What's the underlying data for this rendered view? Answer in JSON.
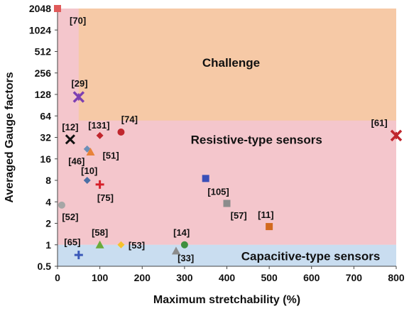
{
  "chart_data": {
    "type": "scatter",
    "xlabel": "Maximum stretchability (%)",
    "ylabel": "Averaged Gauge factors",
    "xlim": [
      0,
      800
    ],
    "ylim": [
      0.5,
      2048
    ],
    "y_scale": "log2",
    "x_ticks": [
      "0",
      "100",
      "200",
      "300",
      "400",
      "500",
      "600",
      "700",
      "800"
    ],
    "y_ticks": [
      "0.5",
      "1",
      "2",
      "4",
      "8",
      "16",
      "32",
      "64",
      "128",
      "256",
      "512",
      "1024",
      "2048"
    ],
    "x_tick_values": [
      0,
      100,
      200,
      300,
      400,
      500,
      600,
      700,
      800
    ],
    "y_tick_values": [
      0.5,
      1,
      2,
      4,
      8,
      16,
      32,
      64,
      128,
      256,
      512,
      1024,
      2048
    ],
    "grid": false,
    "regions": [
      {
        "label": "",
        "color": "#f4c6cc",
        "x": [
          0,
          800
        ],
        "y": [
          1,
          2048
        ]
      },
      {
        "label": "Challenge",
        "color": "#f6c9a6",
        "x": [
          50,
          800
        ],
        "y": [
          55,
          2048
        ],
        "label_at": [
          410,
          360
        ]
      },
      {
        "label": "Resistive-type sensors",
        "color": "#f4c6cc",
        "x": [
          0,
          800
        ],
        "y": [
          1,
          55
        ],
        "label_at": [
          470,
          30
        ]
      },
      {
        "label": "Capacitive-type sensors",
        "color": "#c9ddf0",
        "x": [
          0,
          800
        ],
        "y": [
          0.5,
          1
        ],
        "label_at": [
          598,
          0.7
        ]
      }
    ],
    "points": [
      {
        "ref": "[70]",
        "x": 0,
        "y": 2048,
        "marker": "square",
        "color": "#e05a5a",
        "label_at": [
          48,
          1400
        ]
      },
      {
        "ref": "[29]",
        "x": 50,
        "y": 118,
        "marker": "x-star",
        "color": "#7d3fb2",
        "label_at": [
          52,
          185
        ]
      },
      {
        "ref": "[12]",
        "x": 30,
        "y": 30,
        "marker": "x",
        "color": "#111111",
        "label_at": [
          30,
          45
        ]
      },
      {
        "ref": "[131]",
        "x": 100,
        "y": 34,
        "marker": "diamond",
        "color": "#c0262d",
        "label_at": [
          98,
          48
        ]
      },
      {
        "ref": "[74]",
        "x": 150,
        "y": 38,
        "marker": "circle",
        "color": "#c0262d",
        "label_at": [
          170,
          58
        ]
      },
      {
        "ref": "[46]",
        "x": 70,
        "y": 22,
        "marker": "diamond",
        "color": "#6c8fb8",
        "label_at": [
          45,
          15
        ]
      },
      {
        "ref": "[51]",
        "x": 78,
        "y": 20,
        "marker": "triangle",
        "color": "#e8833a",
        "label_at": [
          126,
          18
        ]
      },
      {
        "ref": "[10]",
        "x": 70,
        "y": 8,
        "marker": "diamond",
        "color": "#4a6fa5",
        "label_at": [
          75,
          11
        ]
      },
      {
        "ref": "[75]",
        "x": 100,
        "y": 7,
        "marker": "plus",
        "color": "#d6202a",
        "label_at": [
          113,
          4.6
        ]
      },
      {
        "ref": "[52]",
        "x": 10,
        "y": 3.6,
        "marker": "circle",
        "color": "#a6a6a6",
        "label_at": [
          30,
          2.5
        ]
      },
      {
        "ref": "[105]",
        "x": 350,
        "y": 8.5,
        "marker": "square",
        "color": "#3a4fb8",
        "label_at": [
          380,
          5.6
        ]
      },
      {
        "ref": "[57]",
        "x": 400,
        "y": 3.8,
        "marker": "square",
        "color": "#8c8c8c",
        "label_at": [
          428,
          2.6
        ]
      },
      {
        "ref": "[11]",
        "x": 500,
        "y": 1.8,
        "marker": "square",
        "color": "#d2691e",
        "label_at": [
          492,
          2.65
        ]
      },
      {
        "ref": "[61]",
        "x": 800,
        "y": 34,
        "marker": "x-star",
        "color": "#c0262d",
        "label_at": [
          760,
          52
        ]
      },
      {
        "ref": "[65]",
        "x": 50,
        "y": 0.72,
        "marker": "plus",
        "color": "#3a58b8",
        "label_at": [
          35,
          1.1
        ]
      },
      {
        "ref": "[58]",
        "x": 100,
        "y": 1,
        "marker": "triangle",
        "color": "#6aaa3a",
        "label_at": [
          100,
          1.5
        ]
      },
      {
        "ref": "[53]",
        "x": 150,
        "y": 1,
        "marker": "diamond",
        "color": "#f5c22b",
        "label_at": [
          187,
          1.0
        ]
      },
      {
        "ref": "[14]",
        "x": 300,
        "y": 1,
        "marker": "circle",
        "color": "#3f8f3f",
        "label_at": [
          293,
          1.5
        ]
      },
      {
        "ref": "[33]",
        "x": 280,
        "y": 0.82,
        "marker": "triangle",
        "color": "#8c8c8c",
        "label_at": [
          303,
          0.66
        ]
      }
    ]
  }
}
